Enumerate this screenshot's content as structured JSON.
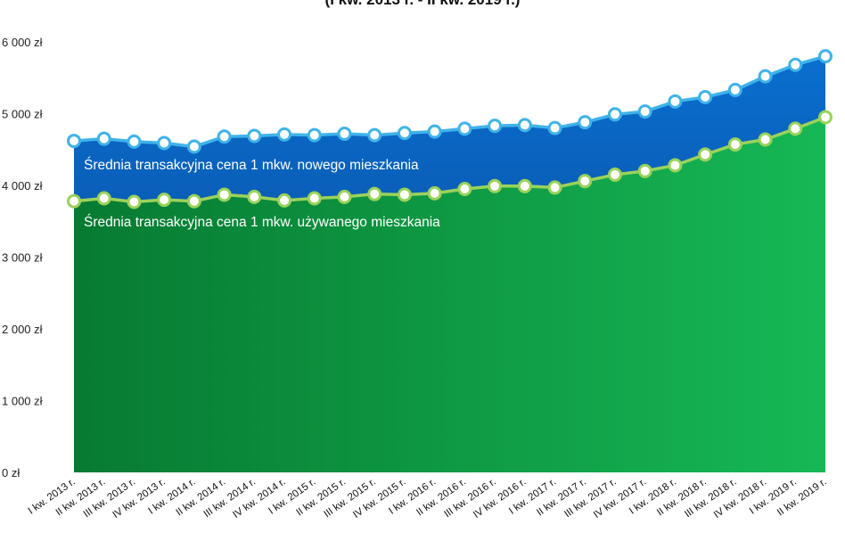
{
  "subtitle": "(I kw. 2013 r. - II kw. 2019 r.)",
  "colors": {
    "new_area_top": "#0a6fcf",
    "new_area_bottom": "#0b3f8c",
    "used_area_left": "#077a32",
    "used_area_right": "#16b855",
    "new_line": "#3fb3ea",
    "used_line": "#9bd25a",
    "marker_fill": "#ffffff"
  },
  "chart_data": {
    "type": "area",
    "categories": [
      "I kw. 2013 r.",
      "II kw. 2013 r.",
      "III kw. 2013 r.",
      "IV kw. 2013 r.",
      "I kw. 2014 r.",
      "II kw. 2014 r.",
      "III kw. 2014 r.",
      "IV kw. 2014 r.",
      "I kw. 2015 r.",
      "II kw. 2015 r.",
      "III kw. 2015 r.",
      "IV kw. 2015 r.",
      "I kw. 2016 r.",
      "II kw. 2016 r.",
      "III kw. 2016 r.",
      "IV kw. 2016 r.",
      "I kw. 2017 r.",
      "II kw. 2017 r.",
      "III kw. 2017 r.",
      "IV kw. 2017 r.",
      "I kw. 2018 r.",
      "II kw. 2018 r.",
      "III kw. 2018 r.",
      "IV kw. 2018 r.",
      "I kw. 2019 r.",
      "II kw. 2019 r."
    ],
    "series": [
      {
        "name": "Średnia transakcyjna cena 1 mkw. nowego mieszkania",
        "values": [
          4620,
          4650,
          4610,
          4590,
          4540,
          4680,
          4690,
          4710,
          4700,
          4720,
          4700,
          4730,
          4750,
          4790,
          4830,
          4840,
          4800,
          4880,
          4990,
          5030,
          5170,
          5230,
          5330,
          5520,
          5680,
          5800
        ]
      },
      {
        "name": "Średnia transakcyjna cena 1 mkw. używanego mieszkania",
        "values": [
          3780,
          3820,
          3770,
          3800,
          3780,
          3870,
          3840,
          3790,
          3820,
          3840,
          3880,
          3870,
          3890,
          3950,
          3990,
          3990,
          3970,
          4060,
          4150,
          4200,
          4280,
          4430,
          4570,
          4640,
          4790,
          4950
        ]
      }
    ],
    "yticks": [
      "0 zł",
      "1 000 zł",
      "2 000 zł",
      "3 000 zł",
      "4 000 zł",
      "5 000 zł",
      "6 000 zł"
    ],
    "ylim": [
      0,
      6000
    ],
    "grid": false
  }
}
